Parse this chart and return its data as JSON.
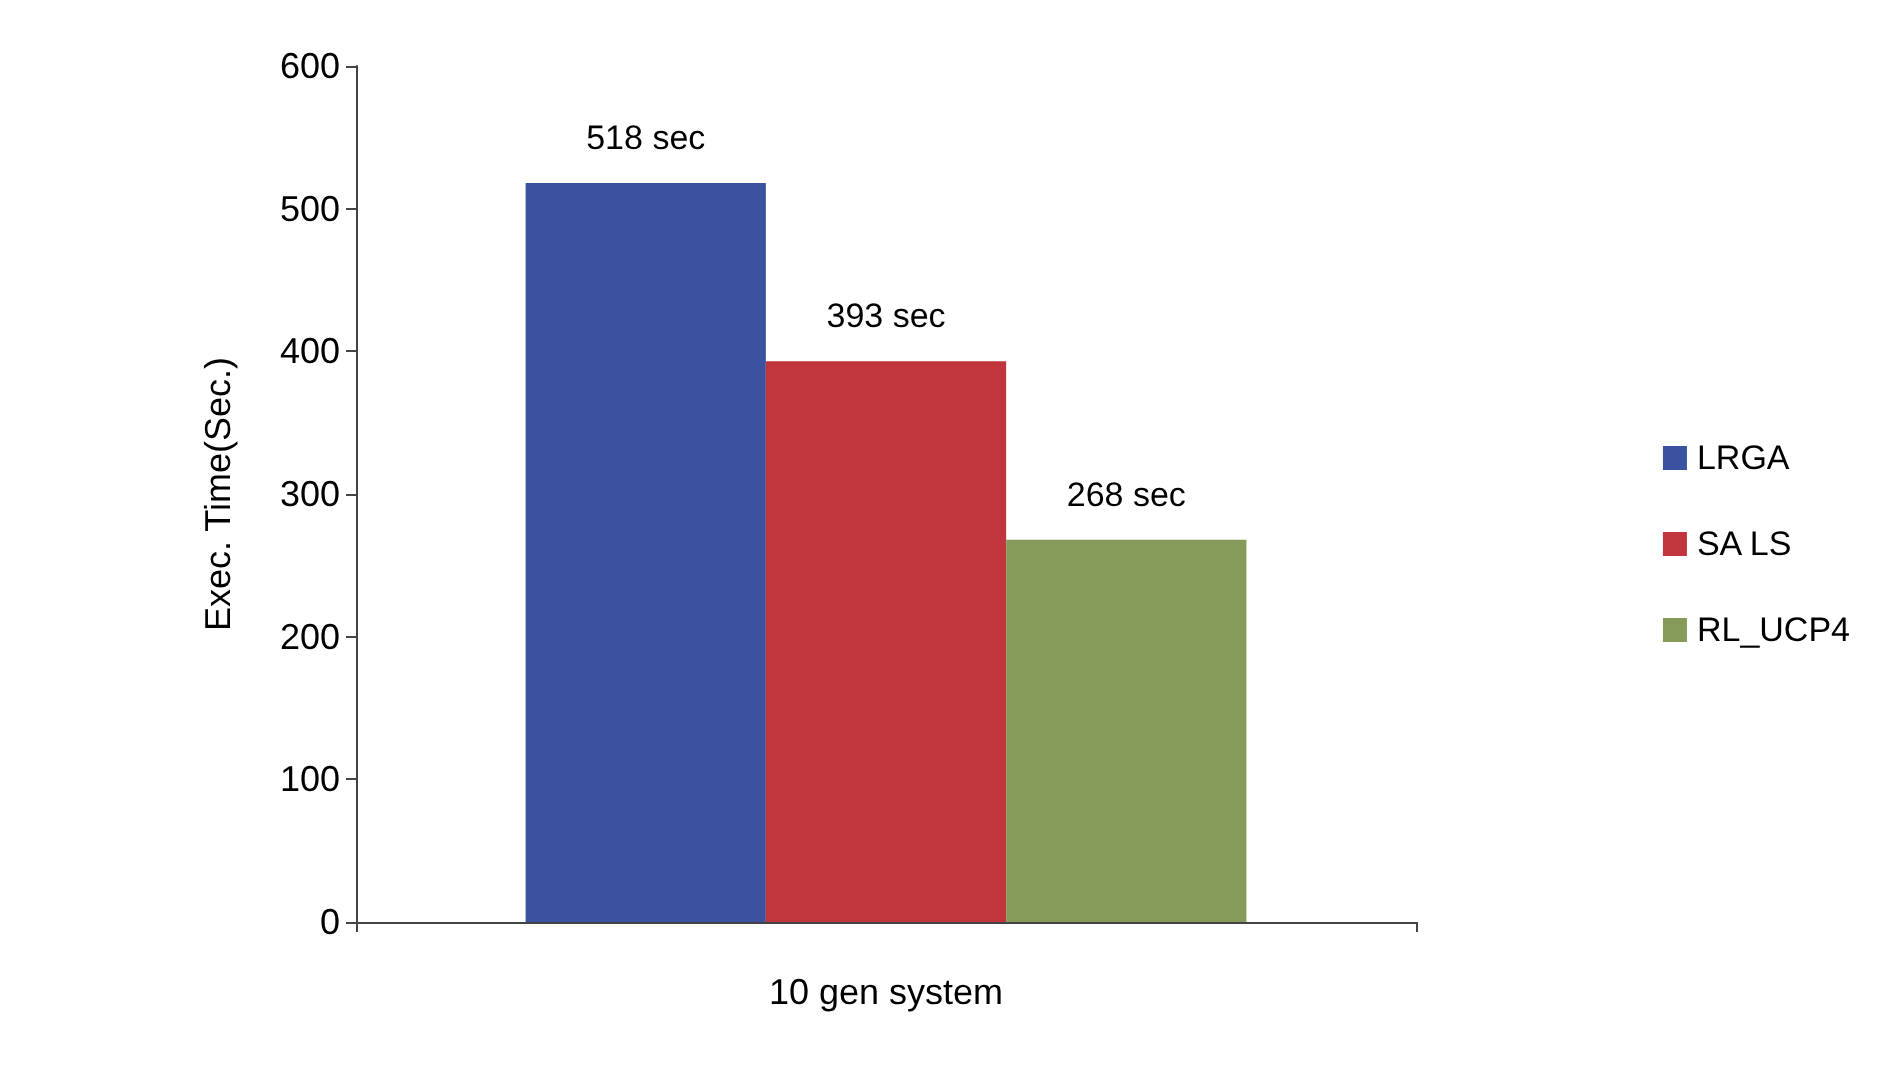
{
  "chart_data": {
    "type": "bar",
    "ylabel": "Exec. Time(Sec.)",
    "categories": [
      "10 gen system"
    ],
    "series": [
      {
        "name": "LRGA",
        "color": "#3a52a0",
        "values": [
          518
        ],
        "value_labels": [
          "518 sec"
        ]
      },
      {
        "name": "SA LS",
        "color": "#c0363c",
        "values": [
          393
        ],
        "value_labels": [
          "393 sec"
        ]
      },
      {
        "name": "RL_UCP4",
        "color": "#869b59",
        "values": [
          268
        ],
        "value_labels": [
          "268 sec"
        ]
      }
    ],
    "ylim": [
      0,
      600
    ],
    "yticks": [
      0,
      100,
      200,
      300,
      400,
      500,
      600
    ],
    "grid": false,
    "legend": "right"
  }
}
